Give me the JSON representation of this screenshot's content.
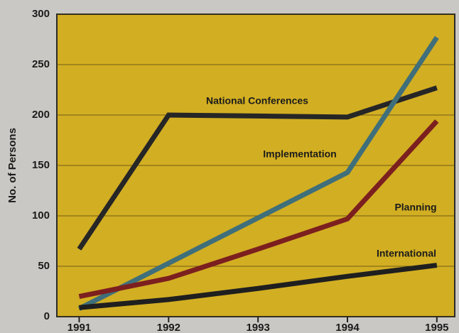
{
  "chart_data": {
    "type": "line",
    "ylabel": "No. of Persons",
    "x": [
      1991,
      1992,
      1993,
      1994,
      1995
    ],
    "xlim": [
      1990.75,
      1995.2
    ],
    "xticks": [
      1991,
      1992,
      1993,
      1994,
      1995
    ],
    "ylim": [
      0,
      300
    ],
    "yticks": [
      0,
      50,
      100,
      150,
      200,
      250,
      300
    ],
    "grid": true,
    "background": "#d2ae22",
    "series": [
      {
        "name": "National Conferences",
        "color": "#262626",
        "values": [
          67,
          200,
          199,
          198,
          227
        ]
      },
      {
        "name": "Implementation",
        "color": "#3f6f7a",
        "values": [
          8,
          53,
          98,
          143,
          277
        ]
      },
      {
        "name": "Planning",
        "color": "#7c1f1f",
        "values": [
          20,
          38,
          67,
          97,
          194
        ]
      },
      {
        "name": "International",
        "color": "#1f1f1f",
        "values": [
          9,
          17,
          28,
          40,
          51
        ]
      }
    ]
  }
}
